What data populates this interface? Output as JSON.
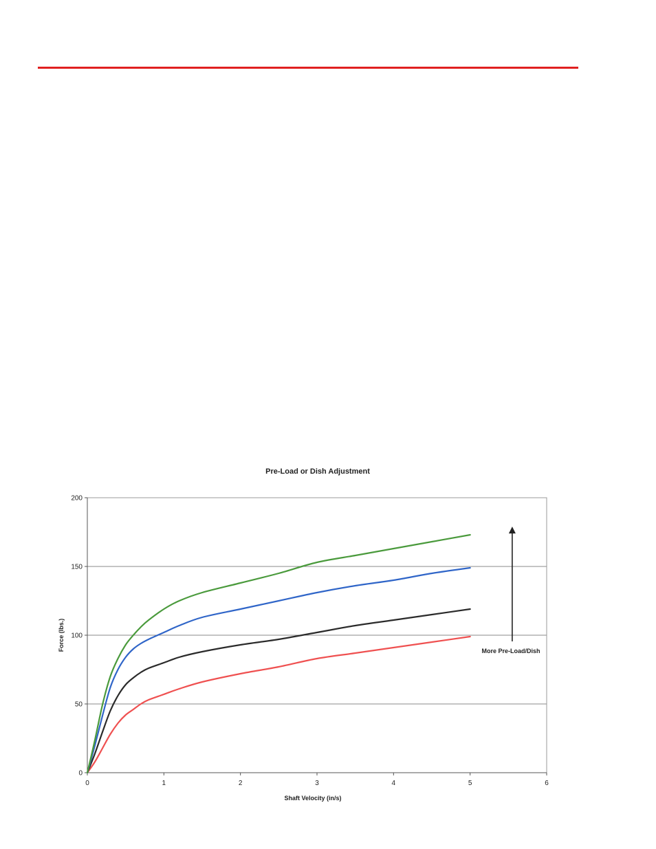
{
  "page": {
    "header_rule_color": "#e02020"
  },
  "chart_data": {
    "type": "line",
    "title": "Pre-Load or Dish Adjustment",
    "xlabel": "Shaft Velocity (in/s)",
    "ylabel": "Force (lbs.)",
    "xlim": [
      0,
      6
    ],
    "ylim": [
      0,
      200
    ],
    "xticks": [
      "0",
      "1",
      "2",
      "3",
      "4",
      "5",
      "6"
    ],
    "yticks": [
      "0",
      "50",
      "100",
      "150",
      "200"
    ],
    "grid": "horizontal",
    "legend": "none",
    "annotation": {
      "text": "More Pre-Load/Dish",
      "arrow": "up"
    },
    "series": [
      {
        "color": "#ef5050",
        "x": [
          0,
          0.1,
          0.2,
          0.3,
          0.4,
          0.5,
          0.6,
          0.7,
          0.8,
          1.0,
          1.2,
          1.5,
          2.0,
          2.5,
          3.0,
          3.5,
          4.0,
          4.5,
          5.0
        ],
        "y": [
          0,
          8,
          18,
          28,
          36,
          42,
          46,
          50,
          53,
          57,
          61,
          66,
          72,
          77,
          83,
          87,
          91,
          95,
          99
        ]
      },
      {
        "color": "#2a2a2a",
        "x": [
          0,
          0.1,
          0.2,
          0.3,
          0.4,
          0.5,
          0.6,
          0.7,
          0.8,
          1.0,
          1.2,
          1.5,
          2.0,
          2.5,
          3.0,
          3.5,
          4.0,
          4.5,
          5.0
        ],
        "y": [
          0,
          14,
          30,
          45,
          56,
          64,
          69,
          73,
          76,
          80,
          84,
          88,
          93,
          97,
          102,
          107,
          111,
          115,
          119
        ]
      },
      {
        "color": "#2f65c8",
        "x": [
          0,
          0.1,
          0.2,
          0.3,
          0.4,
          0.5,
          0.6,
          0.7,
          0.8,
          1.0,
          1.2,
          1.5,
          2.0,
          2.5,
          3.0,
          3.5,
          4.0,
          4.5,
          5.0
        ],
        "y": [
          0,
          20,
          42,
          62,
          75,
          84,
          90,
          94,
          97,
          102,
          107,
          113,
          119,
          125,
          131,
          136,
          140,
          145,
          149
        ]
      },
      {
        "color": "#4a9a3c",
        "x": [
          0,
          0.1,
          0.2,
          0.3,
          0.4,
          0.5,
          0.6,
          0.7,
          0.8,
          1.0,
          1.2,
          1.5,
          2.0,
          2.5,
          3.0,
          3.5,
          4.0,
          4.5,
          5.0
        ],
        "y": [
          0,
          24,
          50,
          70,
          83,
          93,
          100,
          106,
          111,
          119,
          125,
          131,
          138,
          145,
          153,
          158,
          163,
          168,
          173
        ]
      }
    ]
  }
}
